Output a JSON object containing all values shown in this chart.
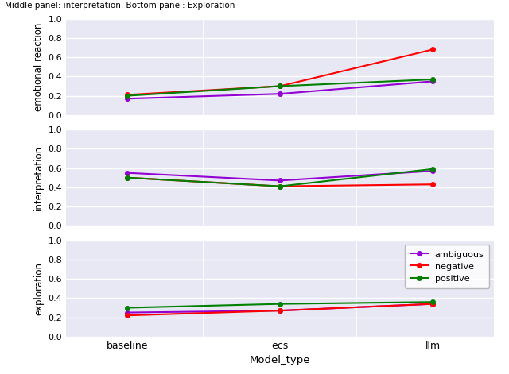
{
  "suptitle": "Middle panel: interpretation. Bottom panel: Exploration",
  "x_labels": [
    "baseline",
    "ecs",
    "llm"
  ],
  "x_positions": [
    0,
    1,
    2
  ],
  "xlabel": "Model_type",
  "panels": [
    {
      "ylabel": "emotional reaction",
      "series": {
        "ambiguous": [
          0.17,
          0.22,
          0.35
        ],
        "negative": [
          0.21,
          0.3,
          0.68
        ],
        "positive": [
          0.2,
          0.3,
          0.37
        ]
      }
    },
    {
      "ylabel": "interpretation",
      "series": {
        "ambiguous": [
          0.55,
          0.47,
          0.57
        ],
        "negative": [
          0.5,
          0.41,
          0.43
        ],
        "positive": [
          0.5,
          0.41,
          0.59
        ]
      }
    },
    {
      "ylabel": "exploration",
      "series": {
        "ambiguous": [
          0.25,
          0.27,
          0.34
        ],
        "negative": [
          0.22,
          0.27,
          0.34
        ],
        "positive": [
          0.3,
          0.34,
          0.36
        ]
      }
    }
  ],
  "colors": {
    "ambiguous": "#9400D3",
    "negative": "#FF0000",
    "positive": "#008000"
  },
  "marker": "o",
  "markersize": 4,
  "linewidth": 1.5,
  "ylim": [
    0.0,
    1.0
  ],
  "yticks": [
    0.0,
    0.2,
    0.4,
    0.6,
    0.8,
    1.0
  ],
  "legend_panel": 2,
  "legend_loc": "upper right",
  "panel_facecolor": "#E8E8F4",
  "figure_facecolor": "#FFFFFF",
  "grid_color": "#FFFFFF",
  "separator_color": "#FFFFFF"
}
